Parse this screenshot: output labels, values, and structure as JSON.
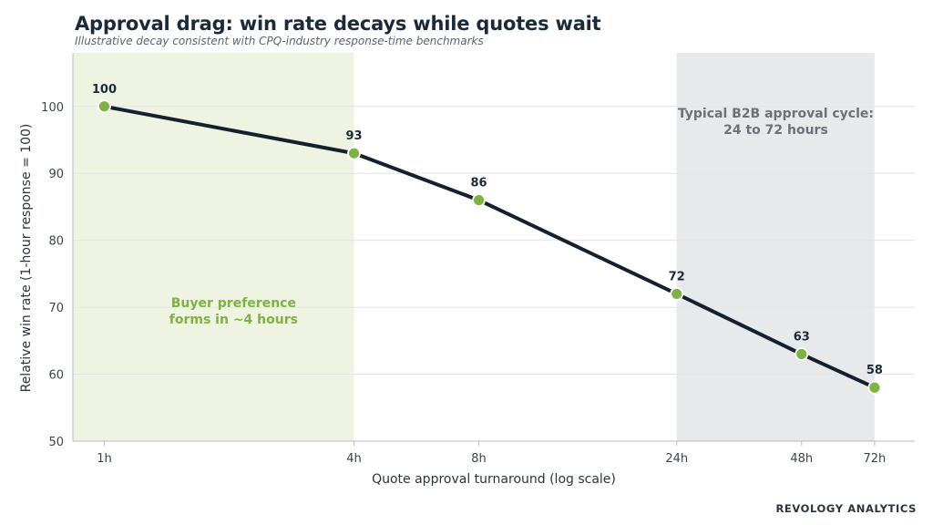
{
  "brand": "REVOLOGY ANALYTICS",
  "colors": {
    "line": "#14202e",
    "marker": "#7cb342",
    "marker_stroke": "#ffffff",
    "early_band": "#eef4e1",
    "early_text": "#7cb342",
    "late_band": "#e8e9eb",
    "late_text": "#6b7178",
    "grid": "#e2e4e6",
    "axis_text": "#3a4450"
  },
  "chart_data": {
    "type": "line",
    "title": "Approval drag: win rate decays while quotes wait",
    "subtitle": "Illustrative decay consistent with CPQ-industry response-time benchmarks",
    "xlabel": "Quote approval turnaround (log scale)",
    "ylabel": "Relative win rate (1-hour response = 100)",
    "x_scale": "log",
    "x": [
      1,
      4,
      8,
      24,
      48,
      72
    ],
    "x_tick_labels": [
      "1h",
      "4h",
      "8h",
      "24h",
      "48h",
      "72h"
    ],
    "xlim": [
      0.84,
      90
    ],
    "ylim": [
      50,
      108
    ],
    "yticks": [
      50,
      60,
      70,
      80,
      90,
      100
    ],
    "grid": "horizontal",
    "series": [
      {
        "values": [
          100,
          93,
          86,
          72,
          63,
          58
        ],
        "data_labels": [
          "100",
          "93",
          "86",
          "72",
          "63",
          "58"
        ]
      }
    ],
    "bands": [
      {
        "x_range": [
          0.84,
          4
        ],
        "lines": [
          "Buyer preference",
          "forms in ~4 hours"
        ],
        "label_x": 2.05,
        "label_y": 70
      },
      {
        "x_range": [
          24,
          72
        ],
        "lines": [
          "Typical B2B approval cycle:",
          "24 to 72 hours"
        ],
        "label_x": 41.6,
        "label_y": 98.3
      }
    ]
  }
}
